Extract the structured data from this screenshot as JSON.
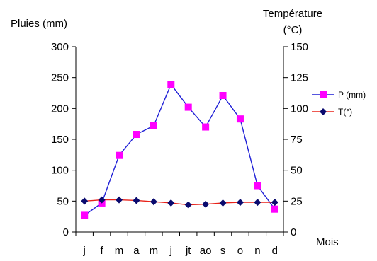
{
  "chart_data": {
    "type": "line",
    "ylabel_left": "Pluies (mm)",
    "ylabel_right_line1": "Température",
    "ylabel_right_line2": "(°C)",
    "xlabel": "Mois",
    "categories": [
      "j",
      "f",
      "m",
      "a",
      "m",
      "j",
      "jt",
      "ao",
      "s",
      "o",
      "n",
      "d"
    ],
    "y_left": {
      "min": 0,
      "max": 300,
      "ticks": [
        0,
        50,
        100,
        150,
        200,
        250,
        300
      ]
    },
    "y_right": {
      "min": 0,
      "max": 150,
      "ticks": [
        0,
        25,
        50,
        75,
        100,
        125,
        150
      ],
      "tick_labels": [
        "0",
        "25",
        "50",
        "75",
        "100",
        "125",
        "150"
      ]
    },
    "series": [
      {
        "name": "P (mm)",
        "axis": "left",
        "color": "#1f1fd6",
        "marker": "square",
        "marker_color": "#ff00ff",
        "values": [
          27,
          47,
          124,
          158,
          172,
          239,
          202,
          170,
          221,
          183,
          75,
          37
        ]
      },
      {
        "name": "T(°)",
        "axis": "right",
        "color": "#e8231a",
        "marker": "diamond",
        "marker_color": "#0a0a6e",
        "values": [
          25,
          26,
          26,
          25.5,
          24.5,
          23.5,
          22,
          22.5,
          23.5,
          24,
          24,
          24
        ]
      }
    ],
    "legend_position": "right"
  }
}
